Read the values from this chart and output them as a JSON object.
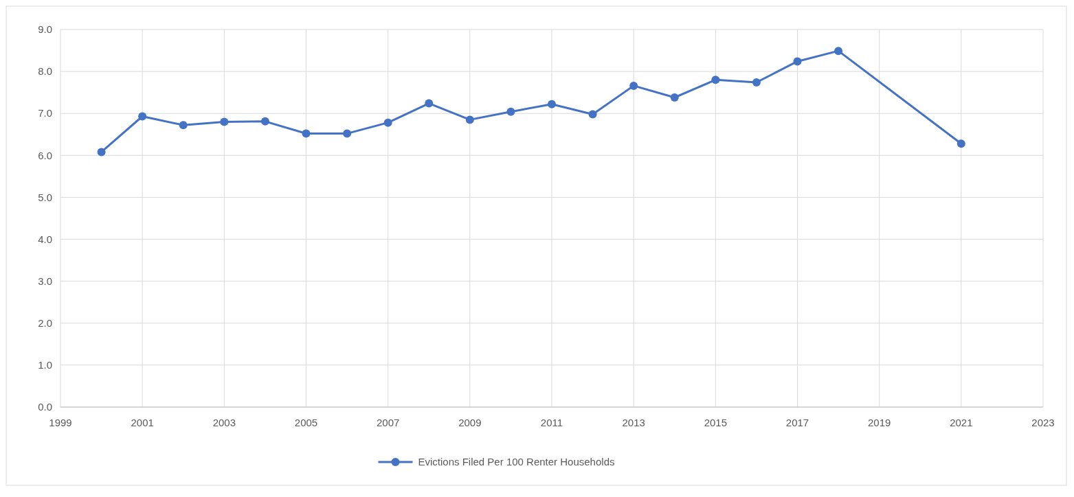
{
  "chart_data": {
    "type": "line",
    "x": [
      2000,
      2001,
      2002,
      2003,
      2004,
      2005,
      2006,
      2007,
      2008,
      2009,
      2010,
      2011,
      2012,
      2013,
      2014,
      2015,
      2016,
      2017,
      2018,
      2021
    ],
    "series": [
      {
        "name": "Evictions Filed Per 100 Renter Households",
        "color": "#4472c4",
        "values": [
          6.08,
          6.93,
          6.72,
          6.8,
          6.81,
          6.52,
          6.52,
          6.78,
          7.24,
          6.85,
          7.04,
          7.22,
          6.98,
          7.66,
          7.38,
          7.8,
          7.74,
          8.24,
          8.49,
          6.28
        ]
      }
    ],
    "xlim": [
      1999,
      2023
    ],
    "xticks": [
      1999,
      2001,
      2003,
      2005,
      2007,
      2009,
      2011,
      2013,
      2015,
      2017,
      2019,
      2021,
      2023
    ],
    "ylim": [
      0,
      9
    ],
    "yticks": [
      {
        "value": 0,
        "label": "0.0"
      },
      {
        "value": 1,
        "label": "1.0"
      },
      {
        "value": 2,
        "label": "2.0"
      },
      {
        "value": 3,
        "label": "3.0"
      },
      {
        "value": 4,
        "label": "4.0"
      },
      {
        "value": 5,
        "label": "5.0"
      },
      {
        "value": 6,
        "label": "6.0"
      },
      {
        "value": 7,
        "label": "7.0"
      },
      {
        "value": 8,
        "label": "8.0"
      },
      {
        "value": 9,
        "label": "9.0"
      }
    ],
    "grid": true,
    "legend": "bottom",
    "marker": "circle",
    "line_style": "solid"
  }
}
